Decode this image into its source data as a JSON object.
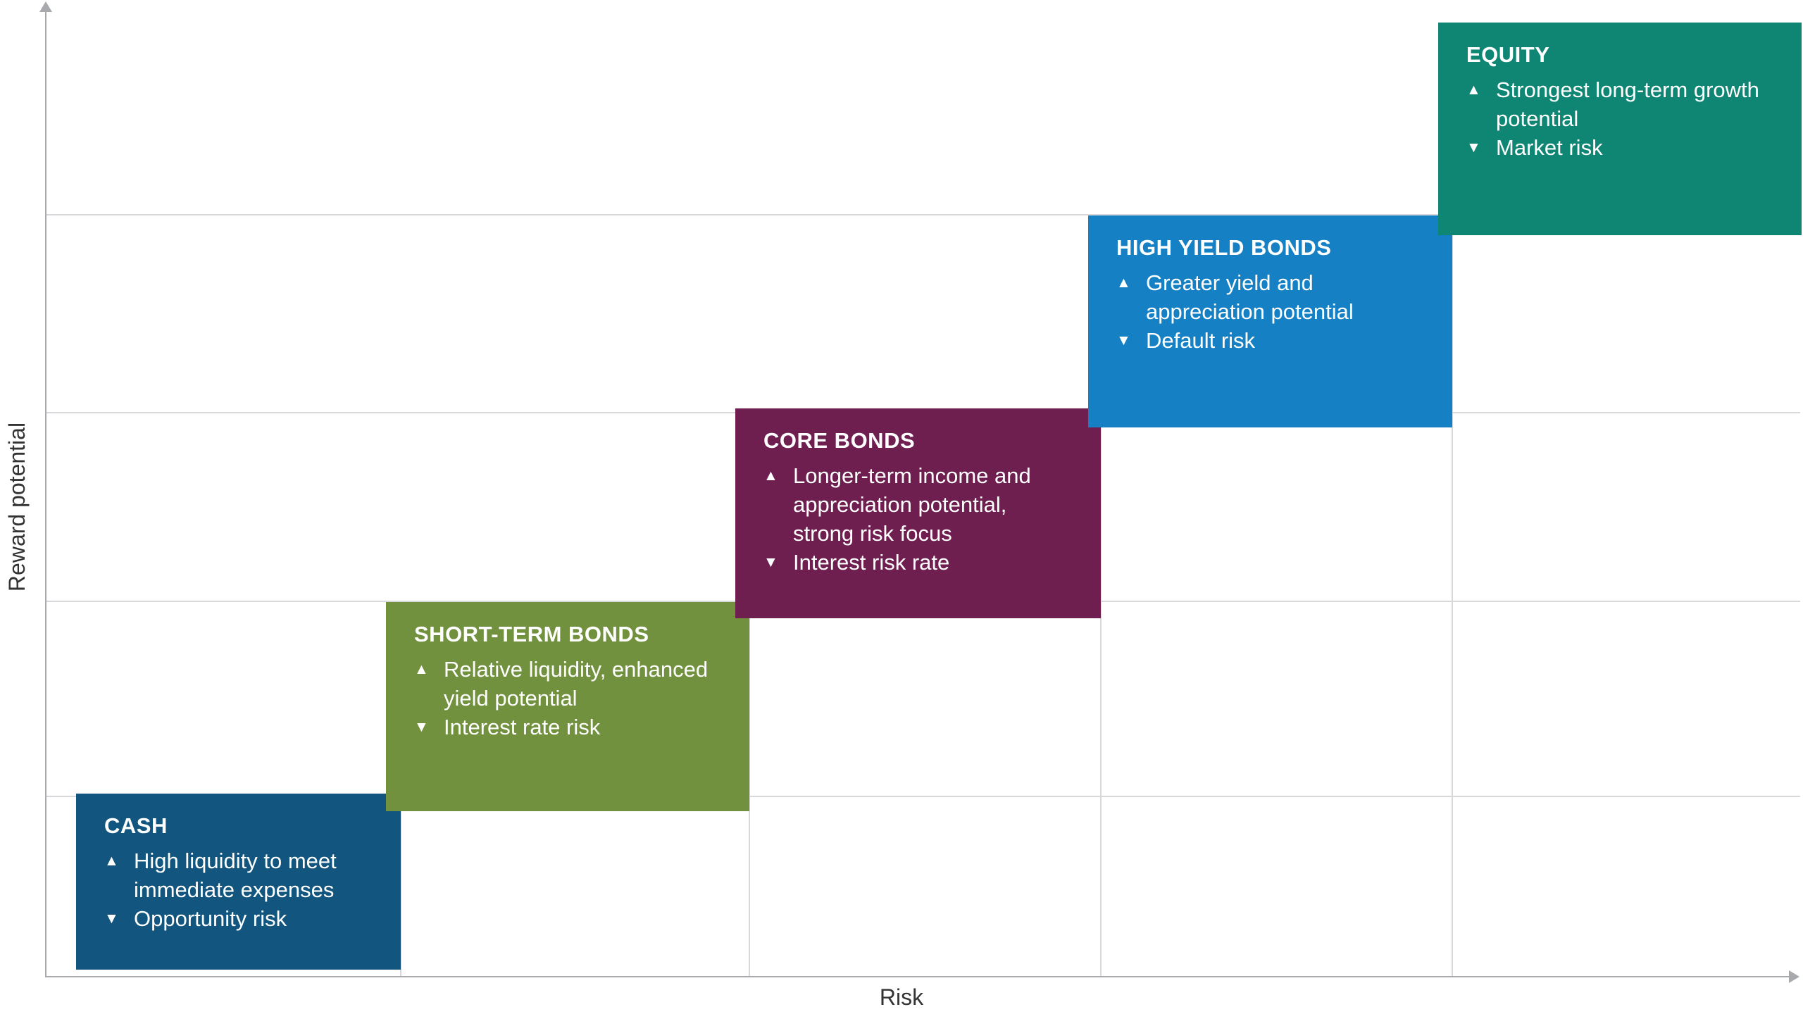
{
  "axes": {
    "x_label": "Risk",
    "y_label": "Reward potential",
    "axis_color": "#a7a9ac",
    "gridline_color": "#d7d8d9",
    "label_color": "#333333"
  },
  "icons": {
    "up_triangle": "▲",
    "down_triangle": "▼"
  },
  "chart_data": {
    "type": "other",
    "subtype": "risk-reward step diagram",
    "title": "",
    "xlabel": "Risk",
    "ylabel": "Reward potential",
    "grid": true,
    "categories": [
      "CASH",
      "SHORT-TERM BONDS",
      "CORE BONDS",
      "HIGH YIELD BONDS",
      "EQUITY"
    ],
    "risk_rank": [
      1,
      2,
      3,
      4,
      5
    ],
    "reward_rank": [
      1,
      2,
      3,
      4,
      5
    ],
    "boxes": [
      {
        "title": "CASH",
        "pro": "High liquidity to meet immediate expenses",
        "con": "Opportunity risk",
        "color": "#12567F"
      },
      {
        "title": "SHORT-TERM BONDS",
        "pro": "Relative liquidity, enhanced yield potential",
        "con": "Interest rate risk",
        "color": "#72913E"
      },
      {
        "title": "CORE BONDS",
        "pro": "Longer-term income and appreciation potential, strong risk focus",
        "con": "Interest risk rate",
        "color": "#6E1F4F"
      },
      {
        "title": "HIGH YIELD BONDS",
        "pro": "Greater yield and appreciation potential",
        "con": "Default risk",
        "color": "#1580C4"
      },
      {
        "title": "EQUITY",
        "pro": "Strongest long-term growth potential",
        "con": "Market risk",
        "color": "#0F8674"
      }
    ]
  }
}
